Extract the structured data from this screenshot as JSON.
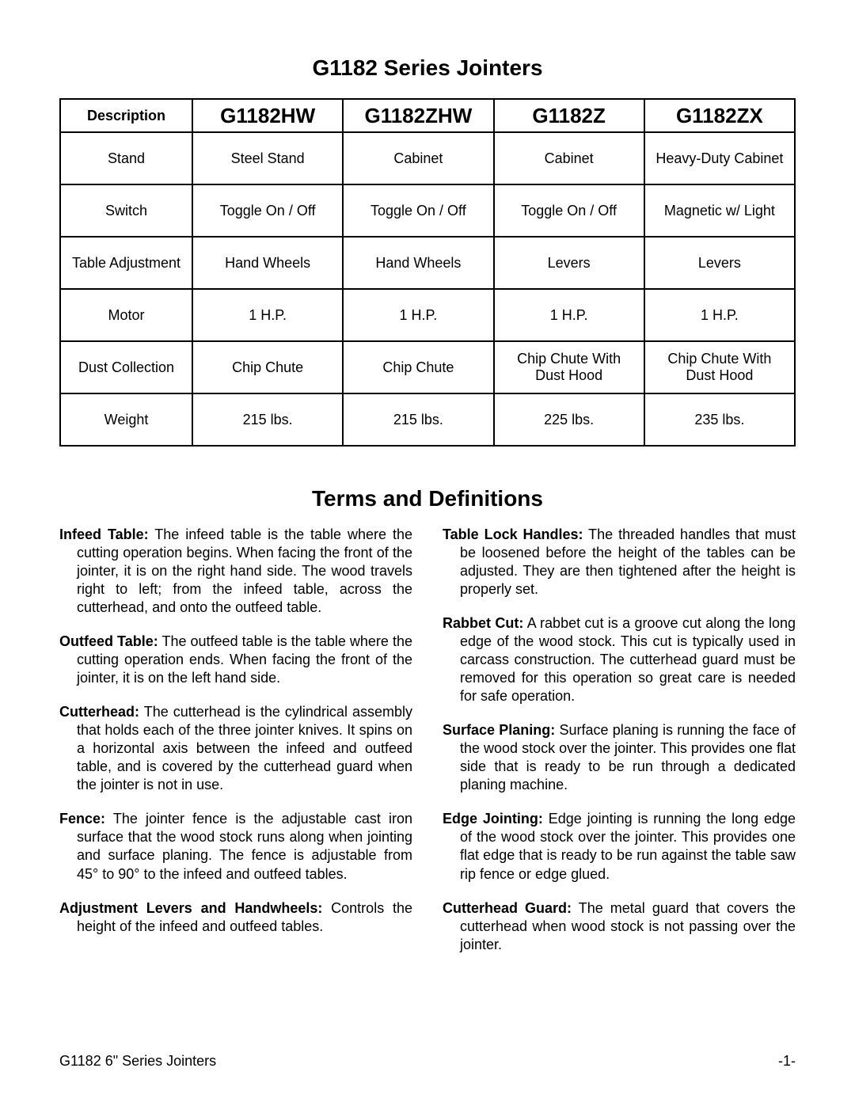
{
  "page": {
    "title1": "G1182 Series Jointers",
    "title2": "Terms and Definitions",
    "footer_left": "G1182 6\" Series Jointers",
    "footer_right": "-1-"
  },
  "comparison": {
    "header_desc": "Description",
    "models": [
      "G1182HW",
      "G1182ZHW",
      "G1182Z",
      "G1182ZX"
    ],
    "rows": [
      {
        "label": "Stand",
        "cells": [
          "Steel Stand",
          "Cabinet",
          "Cabinet",
          "Heavy-Duty Cabinet"
        ]
      },
      {
        "label": "Switch",
        "cells": [
          "Toggle On / Off",
          "Toggle On / Off",
          "Toggle On / Off",
          "Magnetic w/ Light"
        ]
      },
      {
        "label": "Table Adjustment",
        "cells": [
          "Hand Wheels",
          "Hand Wheels",
          "Levers",
          "Levers"
        ]
      },
      {
        "label": "Motor",
        "cells": [
          "1 H.P.",
          "1 H.P.",
          "1 H.P.",
          "1 H.P."
        ]
      },
      {
        "label": "Dust Collection",
        "cells": [
          "Chip Chute",
          "Chip Chute",
          "Chip Chute With Dust Hood",
          "Chip Chute With Dust Hood"
        ]
      },
      {
        "label": "Weight",
        "cells": [
          "215 lbs.",
          "215 lbs.",
          "225 lbs.",
          "235 lbs."
        ]
      }
    ]
  },
  "definitions": {
    "left": [
      {
        "term": "Infeed Table:",
        "text": " The infeed table is the table where the cutting operation begins. When facing the front of the jointer, it is on the right hand side. The wood travels right to left; from the infeed table, across the cutterhead, and onto the outfeed table."
      },
      {
        "term": "Outfeed Table:",
        "text": " The outfeed table is the table where the cutting operation ends. When facing the front of the jointer, it is on the left hand side."
      },
      {
        "term": "Cutterhead:",
        "text": " The cutterhead is the cylindrical assembly that holds each of the three jointer knives. It spins on a horizontal axis between the infeed and outfeed table, and is covered by the cutterhead guard when the jointer is not in use."
      },
      {
        "term": "Fence:",
        "text": " The jointer fence is the adjustable cast iron surface that the wood stock runs along when jointing and surface planing. The fence is adjustable from 45° to 90° to the infeed and outfeed tables."
      },
      {
        "term": "Adjustment Levers and Handwheels:",
        "text": " Controls the height of the infeed and outfeed tables."
      }
    ],
    "right": [
      {
        "term": "Table Lock Handles:",
        "text": " The threaded handles that must be loosened before the height of the tables can be adjusted. They are then tightened after the height is properly set."
      },
      {
        "term": "Rabbet Cut:",
        "text": " A rabbet cut is a groove cut along the long edge of the wood stock. This cut is typically used in carcass construction. The cutterhead guard must be removed for this operation so great care is needed for safe operation."
      },
      {
        "term": "Surface Planing:",
        "text": " Surface planing is running the face of the wood stock over the jointer. This provides one flat side that is ready to be run through a dedicated planing machine."
      },
      {
        "term": "Edge Jointing:",
        "text": " Edge jointing is running the long edge of the wood stock over the jointer. This provides one flat edge that is ready to be run against the table saw rip fence or edge glued."
      },
      {
        "term": "Cutterhead Guard:",
        "text": " The metal guard that covers the cutterhead when wood stock is not passing over the jointer."
      }
    ]
  }
}
